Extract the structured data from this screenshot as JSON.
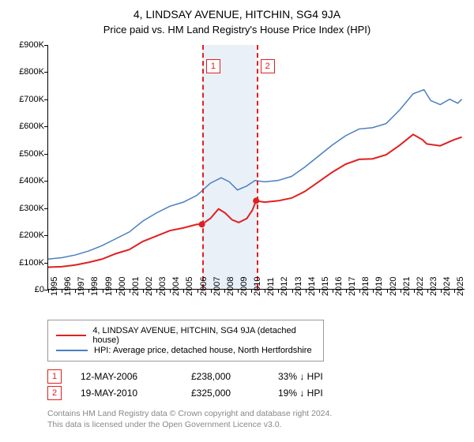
{
  "title": "4, LINDSAY AVENUE, HITCHIN, SG4 9JA",
  "subtitle": "Price paid vs. HM Land Registry's House Price Index (HPI)",
  "chart": {
    "type": "line",
    "xlim": [
      1995,
      2025.8
    ],
    "ylim": [
      0,
      900000
    ],
    "yticks": [
      0,
      100000,
      200000,
      300000,
      400000,
      500000,
      600000,
      700000,
      800000,
      900000
    ],
    "ytick_labels": [
      "£0",
      "£100K",
      "£200K",
      "£300K",
      "£400K",
      "£500K",
      "£600K",
      "£700K",
      "£800K",
      "£900K"
    ],
    "xticks": [
      1995,
      1996,
      1997,
      1998,
      1999,
      2000,
      2001,
      2002,
      2003,
      2004,
      2005,
      2006,
      2007,
      2008,
      2009,
      2010,
      2011,
      2012,
      2013,
      2014,
      2015,
      2016,
      2017,
      2018,
      2019,
      2020,
      2021,
      2022,
      2023,
      2024,
      2025
    ],
    "y_fontsize": 11,
    "x_fontsize": 11,
    "background_color": "#ffffff",
    "axis_color": "#000000",
    "sale_band": {
      "from": 2006.37,
      "to": 2010.38,
      "color": "#eaf0f8"
    },
    "sale_lines": [
      {
        "x": 2006.37,
        "label": "1",
        "color": "#e02020"
      },
      {
        "x": 2010.38,
        "label": "2",
        "color": "#e02020"
      }
    ],
    "series": [
      {
        "id": "property",
        "label": "4, LINDSAY AVENUE, HITCHIN, SG4 9JA (detached house)",
        "color": "#e02020",
        "width": 2,
        "points": [
          [
            1995,
            80000
          ],
          [
            1996,
            82000
          ],
          [
            1997,
            88000
          ],
          [
            1998,
            98000
          ],
          [
            1999,
            110000
          ],
          [
            2000,
            130000
          ],
          [
            2001,
            145000
          ],
          [
            2002,
            175000
          ],
          [
            2003,
            195000
          ],
          [
            2004,
            215000
          ],
          [
            2005,
            225000
          ],
          [
            2006,
            238000
          ],
          [
            2006.37,
            238000
          ],
          [
            2007,
            260000
          ],
          [
            2007.6,
            295000
          ],
          [
            2008.1,
            280000
          ],
          [
            2008.6,
            255000
          ],
          [
            2009.1,
            245000
          ],
          [
            2009.7,
            260000
          ],
          [
            2010.1,
            290000
          ],
          [
            2010.38,
            325000
          ],
          [
            2011,
            320000
          ],
          [
            2012,
            325000
          ],
          [
            2013,
            335000
          ],
          [
            2014,
            360000
          ],
          [
            2015,
            395000
          ],
          [
            2016,
            430000
          ],
          [
            2017,
            460000
          ],
          [
            2018,
            478000
          ],
          [
            2019,
            480000
          ],
          [
            2020,
            495000
          ],
          [
            2021,
            530000
          ],
          [
            2022,
            570000
          ],
          [
            2022.7,
            550000
          ],
          [
            2023,
            535000
          ],
          [
            2024,
            528000
          ],
          [
            2025,
            550000
          ],
          [
            2025.6,
            560000
          ]
        ],
        "markers": [
          {
            "x": 2006.37,
            "y": 238000
          },
          {
            "x": 2010.38,
            "y": 325000
          }
        ]
      },
      {
        "id": "hpi",
        "label": "HPI: Average price, detached house, North Hertfordshire",
        "color": "#4a7fbf",
        "width": 1.5,
        "points": [
          [
            1995,
            110000
          ],
          [
            1996,
            115000
          ],
          [
            1997,
            125000
          ],
          [
            1998,
            140000
          ],
          [
            1999,
            160000
          ],
          [
            2000,
            185000
          ],
          [
            2001,
            210000
          ],
          [
            2002,
            250000
          ],
          [
            2003,
            280000
          ],
          [
            2004,
            305000
          ],
          [
            2005,
            320000
          ],
          [
            2006,
            345000
          ],
          [
            2007,
            390000
          ],
          [
            2007.8,
            410000
          ],
          [
            2008.4,
            395000
          ],
          [
            2009,
            365000
          ],
          [
            2009.7,
            380000
          ],
          [
            2010.3,
            400000
          ],
          [
            2011,
            395000
          ],
          [
            2012,
            400000
          ],
          [
            2013,
            415000
          ],
          [
            2014,
            450000
          ],
          [
            2015,
            490000
          ],
          [
            2016,
            530000
          ],
          [
            2017,
            565000
          ],
          [
            2018,
            590000
          ],
          [
            2019,
            595000
          ],
          [
            2020,
            610000
          ],
          [
            2021,
            660000
          ],
          [
            2022,
            720000
          ],
          [
            2022.8,
            735000
          ],
          [
            2023.3,
            695000
          ],
          [
            2024,
            680000
          ],
          [
            2024.7,
            700000
          ],
          [
            2025.3,
            685000
          ],
          [
            2025.6,
            700000
          ]
        ]
      }
    ]
  },
  "legend": {
    "rows": [
      {
        "color": "#e02020",
        "width": 2,
        "text": "4, LINDSAY AVENUE, HITCHIN, SG4 9JA (detached house)"
      },
      {
        "color": "#4a7fbf",
        "width": 1.5,
        "text": "HPI: Average price, detached house, North Hertfordshire"
      }
    ]
  },
  "sales": [
    {
      "idx": "1",
      "color": "#e02020",
      "date": "12-MAY-2006",
      "price": "£238,000",
      "delta": "33% ↓ HPI"
    },
    {
      "idx": "2",
      "color": "#e02020",
      "date": "19-MAY-2010",
      "price": "£325,000",
      "delta": "19% ↓ HPI"
    }
  ],
  "footer_line1": "Contains HM Land Registry data © Crown copyright and database right 2024.",
  "footer_line2": "This data is licensed under the Open Government Licence v3.0."
}
